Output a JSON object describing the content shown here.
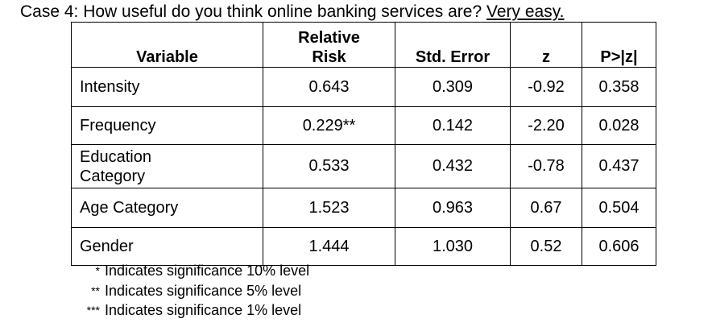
{
  "title": {
    "prefix": "Case 4: How useful do you think online banking services are?  ",
    "underlined": "Very easy."
  },
  "table": {
    "headers": {
      "variable": "Variable",
      "relative_risk_line1": "Relative",
      "relative_risk_line2": "Risk",
      "std_error": "Std. Error",
      "z": "z",
      "p": "P>|z|"
    },
    "rows": [
      {
        "variable": "Intensity",
        "relative_risk": "0.643",
        "std_error": "0.309",
        "z": "-0.92",
        "p": "0.358"
      },
      {
        "variable": "Frequency",
        "relative_risk": "0.229**",
        "std_error": "0.142",
        "z": "-2.20",
        "p": "0.028"
      },
      {
        "variable_line1": "Education",
        "variable_line2": "Category",
        "relative_risk": "0.533",
        "std_error": "0.432",
        "z": "-0.78",
        "p": "0.437"
      },
      {
        "variable": "Age Category",
        "relative_risk": "1.523",
        "std_error": "0.963",
        "z": "0.67",
        "p": "0.504"
      },
      {
        "variable": "Gender",
        "relative_risk": "1.444",
        "std_error": "1.030",
        "z": "0.52",
        "p": "0.606"
      }
    ]
  },
  "notes": [
    {
      "mark": "*",
      "text": "Indicates significance 10% level"
    },
    {
      "mark": "**",
      "text": "Indicates significance 5% level"
    },
    {
      "mark": "***",
      "text": "Indicates significance 1% level"
    }
  ]
}
